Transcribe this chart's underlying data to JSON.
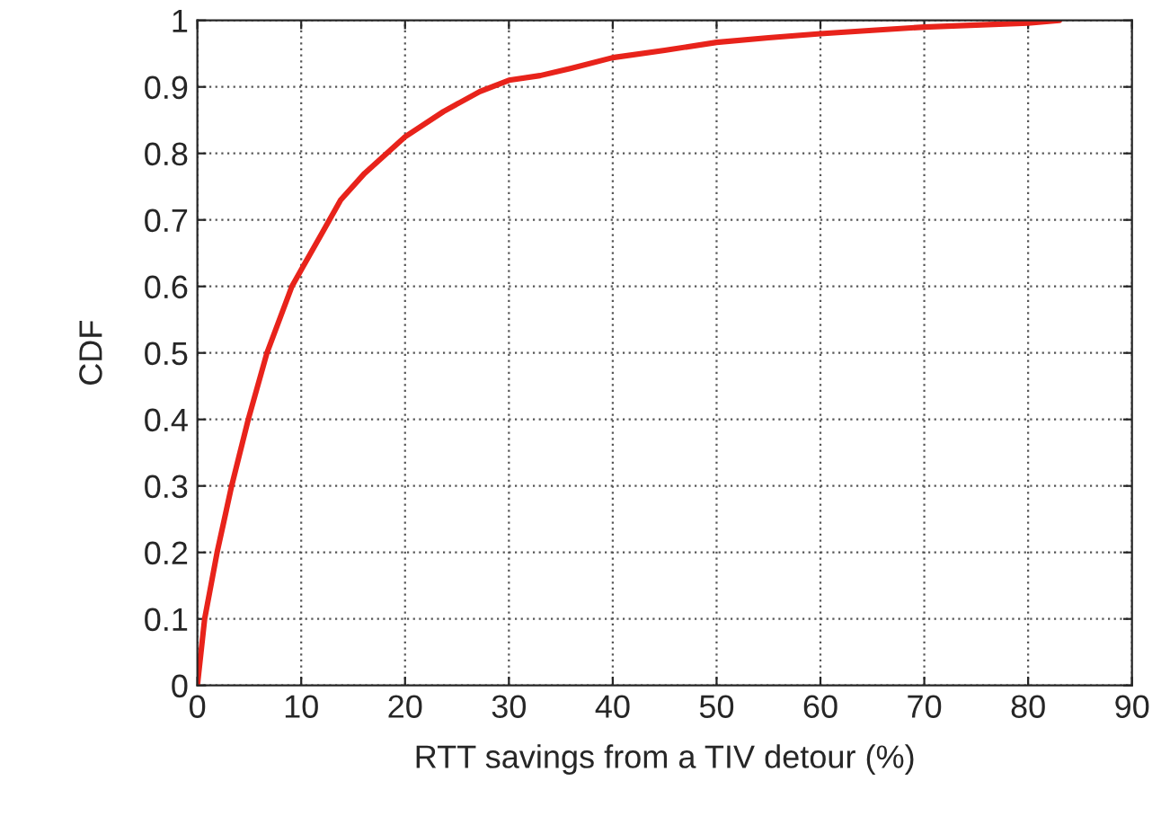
{
  "chart_data": {
    "type": "line",
    "xlabel": "RTT savings from a TIV detour (%)",
    "ylabel": "CDF",
    "series": [
      {
        "color": "#e8231b",
        "x": [
          0,
          0.7,
          1.9,
          3.3,
          4.9,
          6.7,
          9.1,
          10,
          12,
          13.8,
          16.1,
          20,
          23.7,
          27.2,
          30,
          33,
          36,
          40,
          45,
          50,
          55,
          60,
          65,
          70,
          75,
          80,
          83
        ],
        "values": [
          0,
          0.1,
          0.2,
          0.3,
          0.4,
          0.5,
          0.6,
          0.625,
          0.68,
          0.73,
          0.77,
          0.825,
          0.863,
          0.893,
          0.91,
          0.917,
          0.928,
          0.944,
          0.955,
          0.967,
          0.974,
          0.98,
          0.985,
          0.99,
          0.993,
          0.996,
          1.0
        ]
      }
    ],
    "xlim": [
      0,
      90
    ],
    "ylim": [
      0,
      1
    ],
    "xticks": [
      0,
      10,
      20,
      30,
      40,
      50,
      60,
      70,
      80,
      90
    ],
    "yticks": [
      0,
      0.1,
      0.2,
      0.3,
      0.4,
      0.5,
      0.6,
      0.7,
      0.8,
      0.9,
      1
    ],
    "grid": true,
    "legend": false,
    "marker": "none",
    "line_style": "solid"
  }
}
